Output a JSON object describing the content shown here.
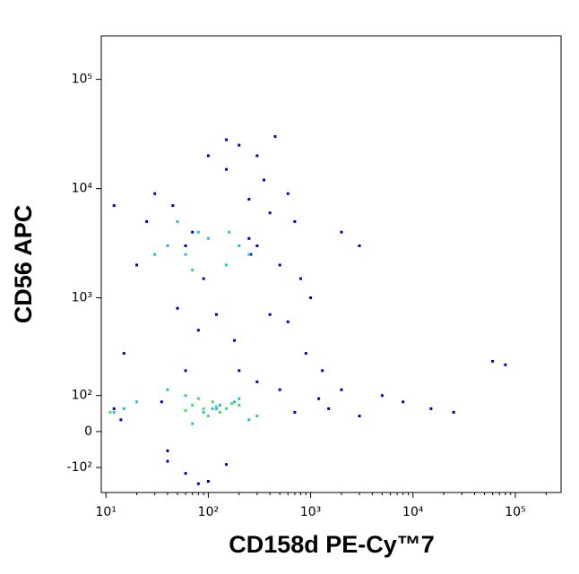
{
  "chart_data": {
    "type": "scatter",
    "x_label": "CD158d PE-Cy™7",
    "y_label": "CD56 APC",
    "xscale": "log",
    "yscale": "biexponential",
    "xlim": [
      9,
      280000
    ],
    "ylim": [
      -200,
      250000
    ],
    "xticks": [
      {
        "value": 10,
        "label": "10¹"
      },
      {
        "value": 100,
        "label": "10²"
      },
      {
        "value": 1000,
        "label": "10³"
      },
      {
        "value": 10000,
        "label": "10⁴"
      },
      {
        "value": 100000,
        "label": "10⁵"
      }
    ],
    "yticks": [
      {
        "value": -100,
        "label": "-10²"
      },
      0,
      {
        "value": 100,
        "label": "10²"
      },
      {
        "value": 1000,
        "label": "10³"
      },
      {
        "value": 10000,
        "label": "10⁴"
      },
      {
        "value": 100000,
        "label": "10⁵"
      }
    ],
    "series": [
      {
        "color": "#0000c8",
        "x": [
          12,
          15,
          20,
          25,
          35,
          40,
          50,
          60,
          80,
          100,
          150,
          200,
          250,
          300,
          400,
          500,
          600,
          800,
          1200,
          1500,
          2000,
          3000,
          5000,
          8000,
          15000,
          25000,
          60000,
          80000,
          30,
          45,
          70,
          90,
          120,
          180,
          260,
          350,
          450,
          600,
          900,
          1300,
          40,
          60,
          100,
          150,
          200,
          300,
          500,
          700,
          1000,
          2000,
          3000,
          300,
          150,
          80,
          60,
          250,
          400,
          700,
          12,
          14
        ],
        "values": [
          60,
          300,
          2000,
          5000,
          80,
          -50,
          800,
          3000,
          500,
          20000,
          15000,
          25000,
          8000,
          3000,
          6000,
          2000,
          600,
          1500,
          90,
          60,
          120,
          40,
          100,
          80,
          60,
          50,
          250,
          230,
          9000,
          7000,
          4000,
          1500,
          700,
          400,
          2500,
          12000,
          30000,
          9000,
          300,
          200,
          -80,
          -120,
          -150,
          -90,
          200,
          150,
          120,
          50,
          1000,
          4000,
          3000,
          20000,
          28000,
          -160,
          200,
          3500,
          700,
          5000,
          7000,
          30
        ]
      },
      {
        "color": "#20c0e0",
        "x": [
          40,
          60,
          80,
          100,
          150,
          200,
          250,
          50,
          70,
          120,
          180,
          300,
          60,
          90,
          130,
          200,
          250,
          40,
          70,
          110,
          160,
          30,
          20,
          15,
          12
        ],
        "values": [
          3000,
          2500,
          4000,
          3500,
          2000,
          3000,
          2500,
          5000,
          1800,
          60,
          80,
          40,
          100,
          50,
          70,
          90,
          30,
          120,
          20,
          60,
          4000,
          2500,
          80,
          60,
          50
        ]
      },
      {
        "color": "#40e060",
        "x": [
          70,
          90,
          110,
          130,
          150,
          100,
          80,
          120,
          60,
          170,
          11,
          200
        ],
        "values": [
          70,
          60,
          80,
          50,
          60,
          40,
          90,
          65,
          55,
          75,
          50,
          70
        ]
      }
    ]
  }
}
